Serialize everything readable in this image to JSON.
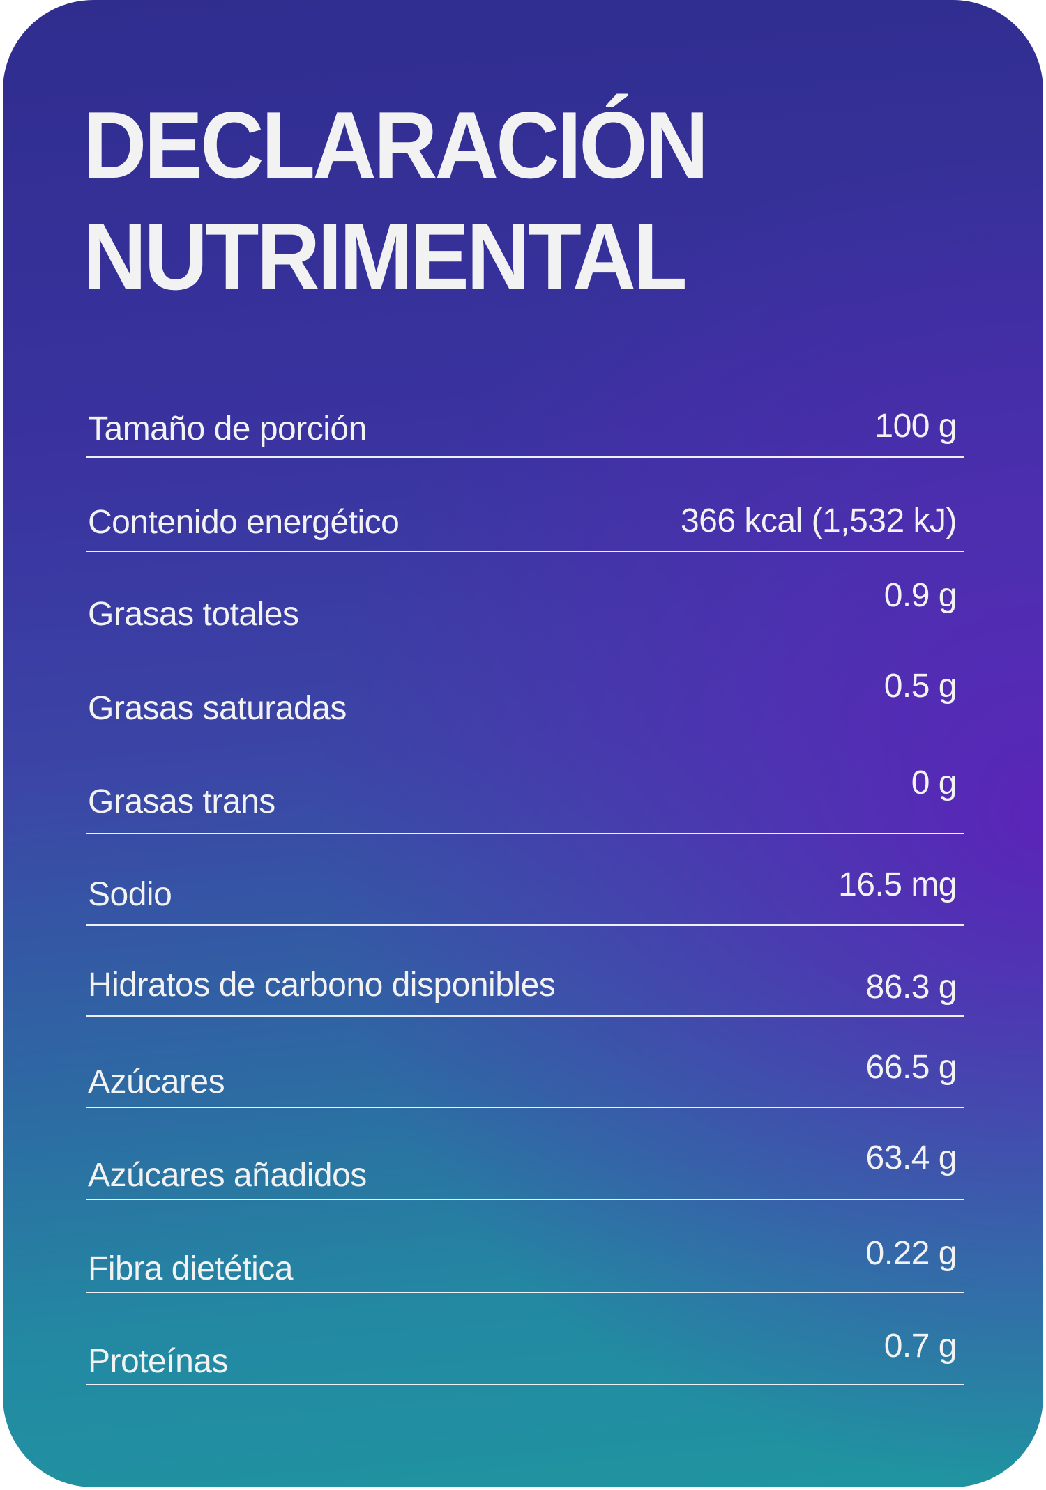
{
  "title": {
    "line1": "DECLARACIÓN",
    "line2": "NUTRIMENTAL"
  },
  "rows": [
    {
      "label": "Tamaño de porción",
      "value": "100 g"
    },
    {
      "label": "Contenido energético",
      "value": "366 kcal (1,532 kJ)"
    },
    {
      "label": "Grasas totales",
      "value": "0.9 g"
    },
    {
      "label": "Grasas saturadas",
      "value": "0.5 g"
    },
    {
      "label": "Grasas trans",
      "value": "0 g"
    },
    {
      "label": "Sodio",
      "value": "16.5 mg"
    },
    {
      "label": "Hidratos de carbono disponibles",
      "value": "86.3 g"
    },
    {
      "label": "Azúcares",
      "value": "66.5 g"
    },
    {
      "label": "Azúcares añadidos",
      "value": "63.4 g"
    },
    {
      "label": "Fibra dietética",
      "value": "0.22 g"
    },
    {
      "label": "Proteínas",
      "value": "0.7 g"
    }
  ],
  "colors": {
    "top": "#2f2d8e",
    "purple": "#5c22b9",
    "bottom": "#1f95a0",
    "text": "#f2f2f2"
  }
}
